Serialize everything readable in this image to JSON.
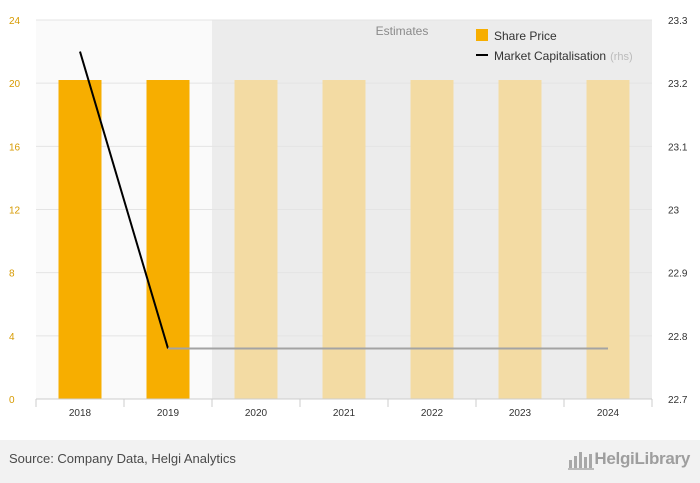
{
  "chart_data": {
    "type": "bar",
    "categories": [
      "2018",
      "2019",
      "2020",
      "2021",
      "2022",
      "2023",
      "2024"
    ],
    "estimate_from_index": 2,
    "estimates_label": "Estimates",
    "y_left": {
      "min": 0,
      "max": 24,
      "ticks": [
        "0",
        "4",
        "8",
        "12",
        "16",
        "20",
        "24"
      ]
    },
    "y_right": {
      "min": 22.7,
      "max": 23.3,
      "ticks": [
        "22.7",
        "22.8",
        "22.9",
        "23",
        "23.1",
        "23.2",
        "23.3"
      ]
    },
    "series": [
      {
        "name": "Share Price",
        "axis": "left",
        "kind": "bar",
        "values": [
          20.2,
          20.2,
          20.2,
          20.2,
          20.2,
          20.2,
          20.2
        ]
      },
      {
        "name": "Market Capitalisation",
        "axis": "right",
        "kind": "line",
        "values": [
          23.25,
          22.78,
          22.78,
          22.78,
          22.78,
          22.78,
          22.78
        ]
      }
    ],
    "legend": {
      "position": "top-right",
      "rhs_suffix": "(rhs)"
    },
    "colors": {
      "bar_actual": "#f7ae00",
      "bar_estimate": "#f3dba3",
      "line_actual": "#000000",
      "line_estimate": "#a3a3a3",
      "estimate_band": "#ececec",
      "left_ticks": "#d79a00"
    },
    "grid": true
  },
  "footer": {
    "source": "Source: Company Data, Helgi Analytics",
    "brand": "HelgiLibrary",
    "brand_icon": "bar-chart-logo-icon"
  }
}
